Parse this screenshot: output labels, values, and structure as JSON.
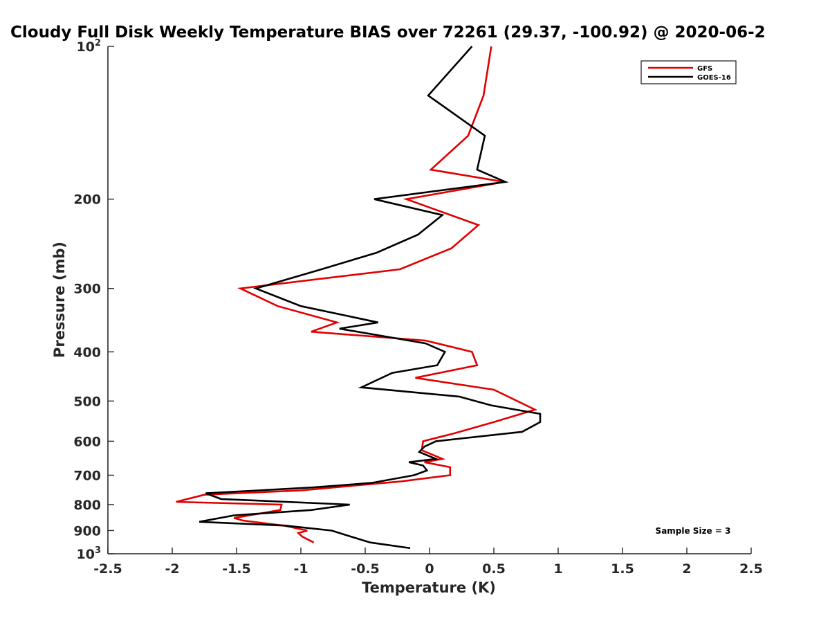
{
  "chart_data": {
    "type": "line",
    "title": "Cloudy Full Disk Weekly Temperature BIAS over 72261 (29.37, -100.92) @ 2020-06-2",
    "xlabel": "Temperature (K)",
    "ylabel": "Pressure (mb)",
    "xlim": [
      -2.5,
      2.5
    ],
    "ylim": [
      100,
      1000
    ],
    "y_scale": "log",
    "y_reversed": true,
    "grid": false,
    "legend_position": "top-right",
    "x_ticks": [
      "-2.5",
      "-2",
      "-1.5",
      "-1",
      "-0.5",
      "0",
      "0.5",
      "1",
      "1.5",
      "2",
      "2.5"
    ],
    "y_ticks": [
      {
        "value": 100,
        "base": "10",
        "exp": "2"
      },
      {
        "value": 200,
        "label": "200"
      },
      {
        "value": 300,
        "label": "300"
      },
      {
        "value": 400,
        "label": "400"
      },
      {
        "value": 500,
        "label": "500"
      },
      {
        "value": 600,
        "label": "600"
      },
      {
        "value": 700,
        "label": "700"
      },
      {
        "value": 800,
        "label": "800"
      },
      {
        "value": 900,
        "label": "900"
      },
      {
        "value": 1000,
        "base": "10",
        "exp": "3"
      }
    ],
    "annotation": "Sample Size = 3",
    "series": [
      {
        "name": "GFS",
        "color": "#e00000",
        "points": [
          [
            0.48,
            100
          ],
          [
            0.42,
            125
          ],
          [
            0.3,
            150
          ],
          [
            0.01,
            175
          ],
          [
            0.58,
            185
          ],
          [
            -0.18,
            200
          ],
          [
            0.38,
            225
          ],
          [
            0.17,
            250
          ],
          [
            -0.23,
            275
          ],
          [
            -1.47,
            300
          ],
          [
            -1.18,
            325
          ],
          [
            -0.72,
            350
          ],
          [
            -0.92,
            365
          ],
          [
            -0.03,
            380
          ],
          [
            0.33,
            400
          ],
          [
            0.37,
            425
          ],
          [
            -0.11,
            450
          ],
          [
            0.5,
            475
          ],
          [
            0.82,
            520
          ],
          [
            0.5,
            550
          ],
          [
            0.18,
            580
          ],
          [
            -0.05,
            600
          ],
          [
            -0.06,
            625
          ],
          [
            0.1,
            650
          ],
          [
            -0.04,
            660
          ],
          [
            0.16,
            675
          ],
          [
            0.16,
            700
          ],
          [
            -0.22,
            720
          ],
          [
            -1.0,
            750
          ],
          [
            -1.75,
            765
          ],
          [
            -1.97,
            790
          ],
          [
            -1.15,
            800
          ],
          [
            -1.16,
            820
          ],
          [
            -1.52,
            850
          ],
          [
            -1.45,
            860
          ],
          [
            -1.13,
            880
          ],
          [
            -0.95,
            900
          ],
          [
            -1.02,
            910
          ],
          [
            -0.99,
            925
          ],
          [
            -0.9,
            950
          ]
        ]
      },
      {
        "name": "GOES-16",
        "color": "#000000",
        "points": [
          [
            0.33,
            100
          ],
          [
            -0.01,
            125
          ],
          [
            0.43,
            150
          ],
          [
            0.37,
            175
          ],
          [
            0.59,
            185
          ],
          [
            -0.43,
            200
          ],
          [
            0.1,
            215
          ],
          [
            -0.09,
            235
          ],
          [
            -0.41,
            255
          ],
          [
            -0.84,
            275
          ],
          [
            -1.35,
            300
          ],
          [
            -1.0,
            325
          ],
          [
            -0.4,
            350
          ],
          [
            -0.7,
            360
          ],
          [
            -0.03,
            385
          ],
          [
            0.12,
            400
          ],
          [
            0.06,
            425
          ],
          [
            -0.29,
            440
          ],
          [
            -0.53,
            470
          ],
          [
            0.23,
            490
          ],
          [
            0.48,
            510
          ],
          [
            0.86,
            530
          ],
          [
            0.86,
            550
          ],
          [
            0.72,
            575
          ],
          [
            0.05,
            600
          ],
          [
            -0.04,
            615
          ],
          [
            -0.08,
            630
          ],
          [
            0.05,
            650
          ],
          [
            -0.16,
            660
          ],
          [
            -0.05,
            670
          ],
          [
            -0.02,
            685
          ],
          [
            -0.12,
            700
          ],
          [
            -0.45,
            725
          ],
          [
            -0.9,
            740
          ],
          [
            -1.74,
            760
          ],
          [
            -1.62,
            780
          ],
          [
            -0.62,
            800
          ],
          [
            -0.92,
            820
          ],
          [
            -1.52,
            840
          ],
          [
            -1.79,
            865
          ],
          [
            -1.12,
            880
          ],
          [
            -0.76,
            900
          ],
          [
            -0.61,
            925
          ],
          [
            -0.46,
            950
          ],
          [
            -0.15,
            975
          ]
        ]
      }
    ]
  }
}
